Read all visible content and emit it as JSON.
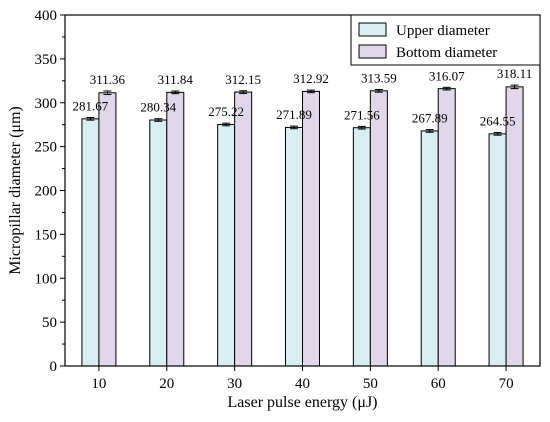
{
  "chart_data": {
    "type": "bar",
    "xlabel": "Laser pulse energy (μJ)",
    "ylabel": "Micropillar diameter (μm)",
    "ylim": [
      0,
      400
    ],
    "yticks": [
      "0",
      "50",
      "100",
      "150",
      "200",
      "250",
      "300",
      "350",
      "400"
    ],
    "categories": [
      "10",
      "20",
      "30",
      "40",
      "50",
      "60",
      "70"
    ],
    "grid": false,
    "legend_position": "top-right",
    "series": [
      {
        "name": "Upper diameter",
        "color": "#d9eef2",
        "values": [
          281.67,
          280.34,
          275.22,
          271.89,
          271.56,
          267.89,
          264.55
        ],
        "labels": [
          "281.67",
          "280.34",
          "275.22",
          "271.89",
          "271.56",
          "267.89",
          "264.55"
        ],
        "errors": [
          1.5,
          1.5,
          1.5,
          1.5,
          1.5,
          1.5,
          1.5
        ]
      },
      {
        "name": "Bottom diameter",
        "color": "#e0d8ea",
        "values": [
          311.36,
          311.84,
          312.15,
          312.92,
          313.59,
          316.07,
          318.11
        ],
        "labels": [
          "311.36",
          "311.84",
          "312.15",
          "312.92",
          "313.59",
          "316.07",
          "318.11"
        ],
        "errors": [
          2.0,
          1.5,
          1.5,
          1.5,
          1.5,
          1.5,
          2.0
        ]
      }
    ]
  }
}
